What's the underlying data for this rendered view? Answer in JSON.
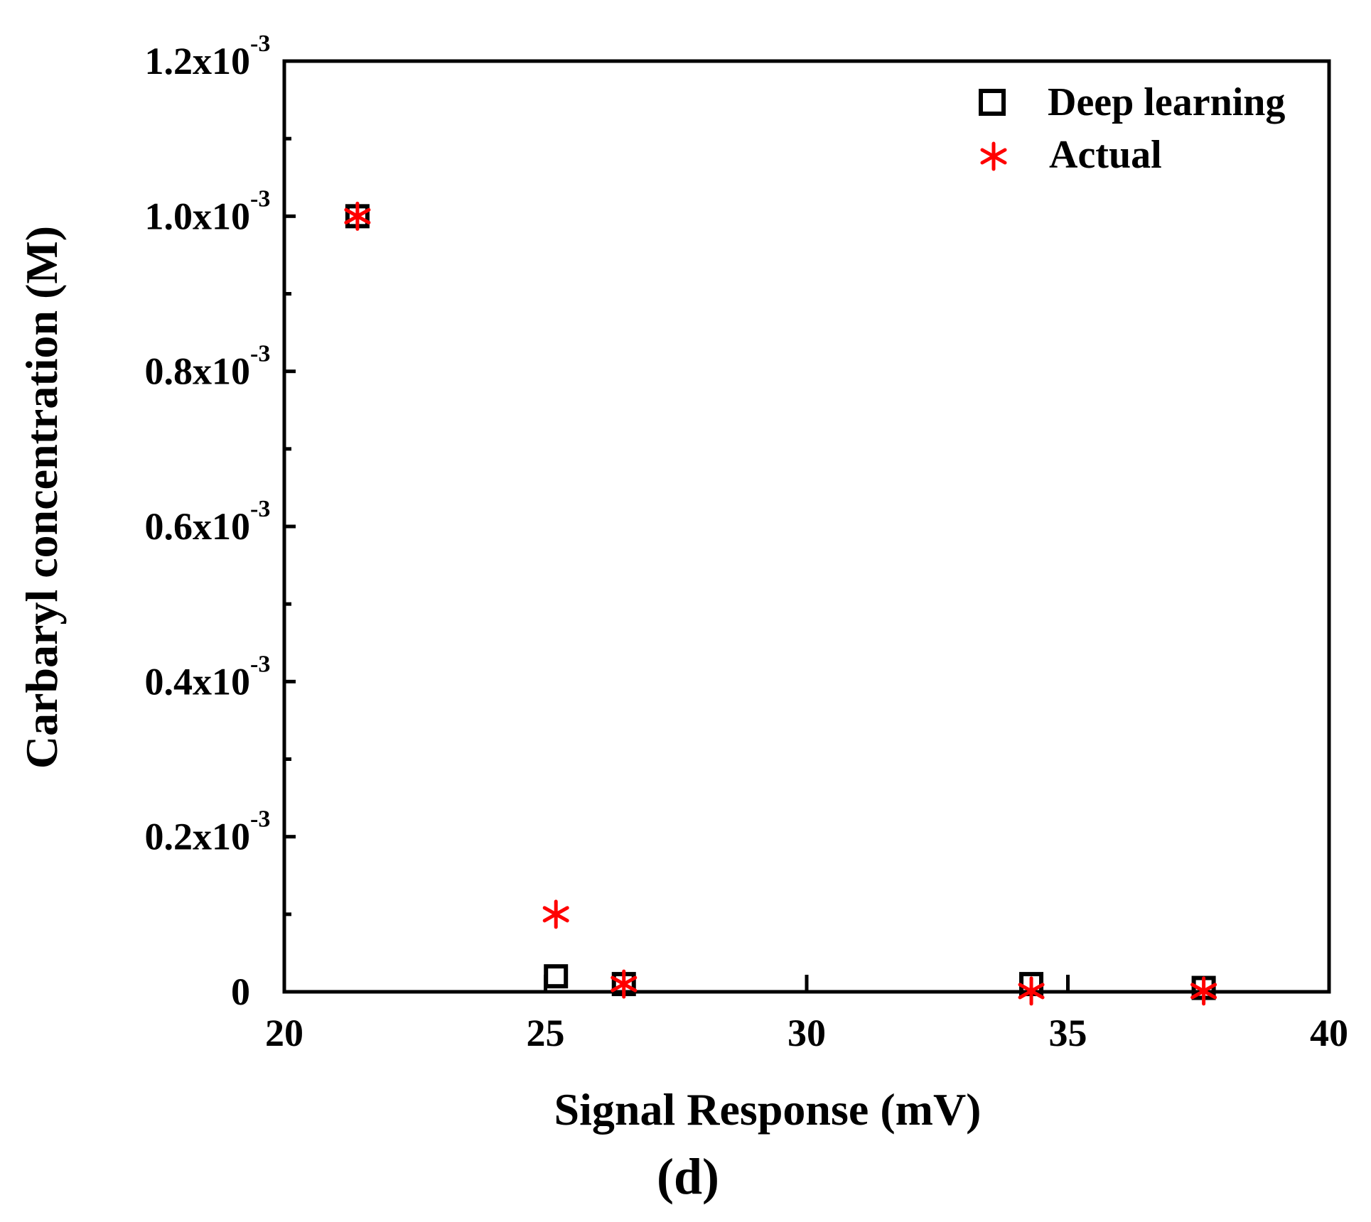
{
  "chart_data": {
    "type": "scatter",
    "title": "",
    "xlabel": "Signal Response (mV)",
    "ylabel": "Carbaryl concentration (M)",
    "xlim": [
      20,
      40
    ],
    "ylim": [
      0,
      0.0012
    ],
    "x_ticks": [
      {
        "value": 20,
        "label": "20"
      },
      {
        "value": 25,
        "label": "25"
      },
      {
        "value": 30,
        "label": "30"
      },
      {
        "value": 35,
        "label": "35"
      },
      {
        "value": 40,
        "label": "40"
      }
    ],
    "y_ticks": [
      {
        "value": 0,
        "label": "0",
        "sup": ""
      },
      {
        "value": 0.0002,
        "label": "0.2x10",
        "sup": "-3"
      },
      {
        "value": 0.0004,
        "label": "0.4x10",
        "sup": "-3"
      },
      {
        "value": 0.0006,
        "label": "0.6x10",
        "sup": "-3"
      },
      {
        "value": 0.0008,
        "label": "0.8x10",
        "sup": "-3"
      },
      {
        "value": 0.001,
        "label": "1.0x10",
        "sup": "-3"
      },
      {
        "value": 0.0012,
        "label": "1.2x10",
        "sup": "-3"
      }
    ],
    "y_minor_step": 0.0001,
    "grid": false,
    "legend_position": "top-right",
    "series": [
      {
        "name": "Deep learning",
        "marker": "open-square",
        "color": "#000000",
        "points": [
          {
            "x": 21.4,
            "y": 0.001
          },
          {
            "x": 25.2,
            "y": 2e-05
          },
          {
            "x": 26.5,
            "y": 1e-05
          },
          {
            "x": 34.3,
            "y": 1e-05
          },
          {
            "x": 37.6,
            "y": 5e-06
          }
        ]
      },
      {
        "name": "Actual",
        "marker": "asterisk",
        "color": "#ff0000",
        "points": [
          {
            "x": 21.4,
            "y": 0.001
          },
          {
            "x": 25.2,
            "y": 0.0001
          },
          {
            "x": 26.5,
            "y": 1e-05
          },
          {
            "x": 34.3,
            "y": 1e-06
          },
          {
            "x": 37.6,
            "y": 1e-06
          }
        ]
      }
    ],
    "caption": "(d)"
  }
}
